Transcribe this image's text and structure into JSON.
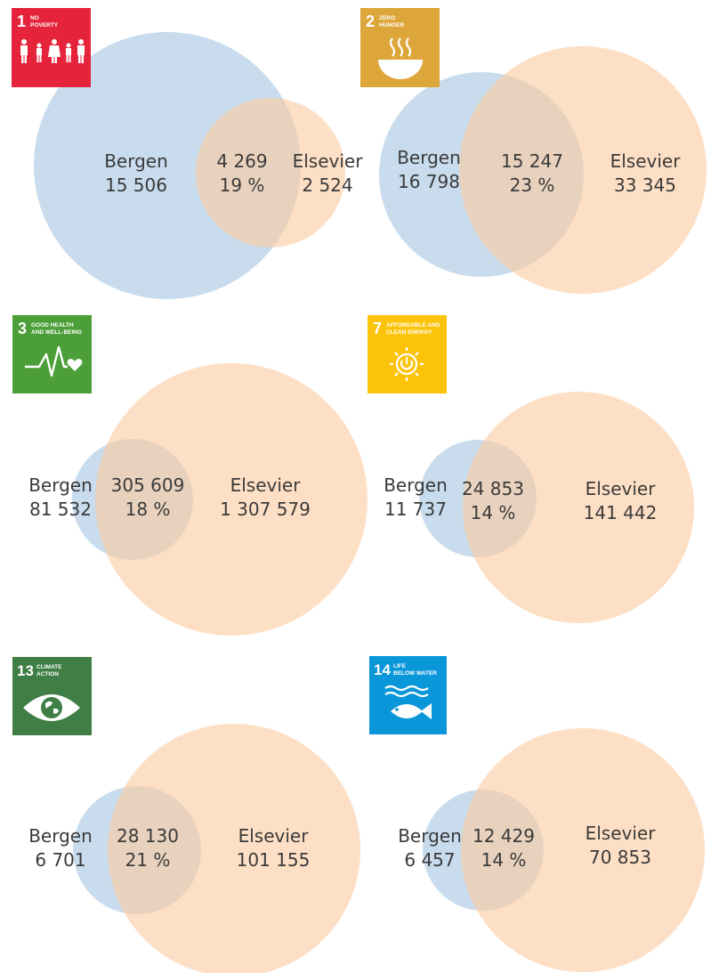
{
  "panels": [
    {
      "goal": {
        "number": "1",
        "title_lines": [
          "NO",
          "POVERTY"
        ],
        "color": "#e5243b",
        "icon_name": "family-icon"
      },
      "left": {
        "label": "Bergen",
        "value": "15 506"
      },
      "overlap": {
        "value": "4 269",
        "percent": "19 %"
      },
      "right": {
        "label": "Elsevier",
        "value": "2 524"
      }
    },
    {
      "goal": {
        "number": "2",
        "title_lines": [
          "ZERO",
          "HUNGER"
        ],
        "color": "#dda63a",
        "icon_name": "bowl-icon"
      },
      "left": {
        "label": "Bergen",
        "value": "16 798"
      },
      "overlap": {
        "value": "15 247",
        "percent": "23 %"
      },
      "right": {
        "label": "Elsevier",
        "value": "33 345"
      }
    },
    {
      "goal": {
        "number": "3",
        "title_lines": [
          "GOOD HEALTH",
          "AND WELL-BEING"
        ],
        "color": "#4c9f38",
        "icon_name": "heartbeat-icon"
      },
      "left": {
        "label": "Bergen",
        "value": "81 532"
      },
      "overlap": {
        "value": "305 609",
        "percent": "18 %"
      },
      "right": {
        "label": "Elsevier",
        "value": "1 307 579"
      }
    },
    {
      "goal": {
        "number": "7",
        "title_lines": [
          "AFFORDABLE AND",
          "CLEAN ENERGY"
        ],
        "color": "#fcc30b",
        "icon_name": "sun-power-icon"
      },
      "left": {
        "label": "Bergen",
        "value": "11 737"
      },
      "overlap": {
        "value": "24 853",
        "percent": "14 %"
      },
      "right": {
        "label": "Elsevier",
        "value": "141 442"
      }
    },
    {
      "goal": {
        "number": "13",
        "title_lines": [
          "CLIMATE",
          "ACTION"
        ],
        "color": "#3f7e44",
        "icon_name": "earth-eye-icon"
      },
      "left": {
        "label": "Bergen",
        "value": "6 701"
      },
      "overlap": {
        "value": "28 130",
        "percent": "21 %"
      },
      "right": {
        "label": "Elsevier",
        "value": "101 155"
      }
    },
    {
      "goal": {
        "number": "14",
        "title_lines": [
          "LIFE",
          "BELOW WATER"
        ],
        "color": "#0a97d9",
        "icon_name": "fish-waves-icon"
      },
      "left": {
        "label": "Bergen",
        "value": "6 457"
      },
      "overlap": {
        "value": "12 429",
        "percent": "14 %"
      },
      "right": {
        "label": "Elsevier",
        "value": "70 853"
      }
    }
  ],
  "colors": {
    "bergen_circle": "#a7c7e2",
    "elsevier_circle": "#fbcba2"
  }
}
